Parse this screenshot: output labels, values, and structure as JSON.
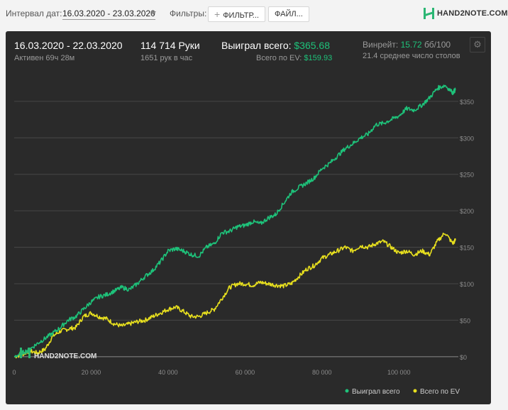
{
  "toolbar": {
    "date_label": "Интервал дат:",
    "date_value": "16.03.2020 - 23.03.2020",
    "filters_label": "Фильтры:",
    "filter_button": "ФИЛЬТР...",
    "files_button": "ФАЙЛ...",
    "logo_text": "HAND2NOTE.COM"
  },
  "summary": {
    "period": "16.03.2020 - 22.03.2020",
    "active": "Активен 69ч 28м",
    "hands": "114 714 Руки",
    "hands_per_hour": "1651 рук в час",
    "won_label": "Выиграл всего:",
    "won_value": "$365.68",
    "ev_label": "Всего по EV:",
    "ev_value": "$159.93",
    "winrate_label": "Винрейт:",
    "winrate_value": "15.72",
    "winrate_unit": "бб/100",
    "tables": "21.4 среднее число столов"
  },
  "watermark": "HAND2NOTE.COM",
  "colors": {
    "won": "#1ec27a",
    "ev": "#e8e01e",
    "panel": "#2a2a2a"
  },
  "chart_data": {
    "type": "line",
    "x_ticks": [
      "0",
      "20 000",
      "40 000",
      "60 000",
      "80 000",
      "100 000"
    ],
    "x_tick_values": [
      0,
      20000,
      40000,
      60000,
      80000,
      100000
    ],
    "y_ticks": [
      "$0",
      "$50",
      "$100",
      "$150",
      "$200",
      "$250",
      "$300",
      "$350"
    ],
    "y_tick_values": [
      0,
      50,
      100,
      150,
      200,
      250,
      300,
      350
    ],
    "xlim": [
      0,
      114714
    ],
    "ylim": [
      -5,
      380
    ],
    "legend_position": "bottom-right",
    "series": [
      {
        "name": "Выиграл всего",
        "color": "#1ec27a",
        "x": [
          0,
          2000,
          4000,
          6000,
          8000,
          10000,
          12000,
          14000,
          16000,
          18000,
          20000,
          22000,
          24000,
          26000,
          28000,
          30000,
          32000,
          34000,
          36000,
          38000,
          40000,
          42000,
          44000,
          46000,
          48000,
          50000,
          52000,
          54000,
          56000,
          58000,
          60000,
          62000,
          64000,
          66000,
          68000,
          70000,
          72000,
          74000,
          76000,
          78000,
          80000,
          82000,
          84000,
          86000,
          88000,
          90000,
          92000,
          94000,
          96000,
          98000,
          100000,
          102000,
          104000,
          106000,
          108000,
          110000,
          112000,
          114000,
          114714
        ],
        "y": [
          0,
          5,
          10,
          18,
          25,
          32,
          40,
          50,
          55,
          65,
          75,
          82,
          85,
          90,
          95,
          92,
          100,
          110,
          118,
          130,
          145,
          148,
          145,
          140,
          138,
          150,
          155,
          170,
          172,
          178,
          180,
          185,
          182,
          190,
          195,
          210,
          225,
          232,
          238,
          245,
          258,
          265,
          275,
          285,
          292,
          300,
          305,
          318,
          320,
          325,
          330,
          340,
          338,
          345,
          355,
          368,
          372,
          362,
          366
        ]
      },
      {
        "name": "Всего по EV",
        "color": "#e8e01e",
        "x": [
          0,
          2000,
          4000,
          6000,
          8000,
          10000,
          12000,
          14000,
          16000,
          18000,
          20000,
          22000,
          24000,
          26000,
          28000,
          30000,
          32000,
          34000,
          36000,
          38000,
          40000,
          42000,
          44000,
          46000,
          48000,
          50000,
          52000,
          54000,
          56000,
          58000,
          60000,
          62000,
          64000,
          66000,
          68000,
          70000,
          72000,
          74000,
          76000,
          78000,
          80000,
          82000,
          84000,
          86000,
          88000,
          90000,
          92000,
          94000,
          96000,
          98000,
          100000,
          102000,
          104000,
          106000,
          108000,
          110000,
          112000,
          114000,
          114714
        ],
        "y": [
          0,
          3,
          8,
          5,
          10,
          28,
          35,
          38,
          40,
          55,
          60,
          55,
          52,
          45,
          42,
          45,
          48,
          50,
          55,
          60,
          65,
          68,
          62,
          55,
          55,
          60,
          65,
          80,
          95,
          100,
          100,
          98,
          102,
          100,
          98,
          97,
          100,
          110,
          120,
          125,
          135,
          140,
          145,
          150,
          145,
          152,
          150,
          155,
          158,
          150,
          142,
          145,
          140,
          145,
          140,
          158,
          170,
          155,
          160
        ]
      }
    ]
  }
}
